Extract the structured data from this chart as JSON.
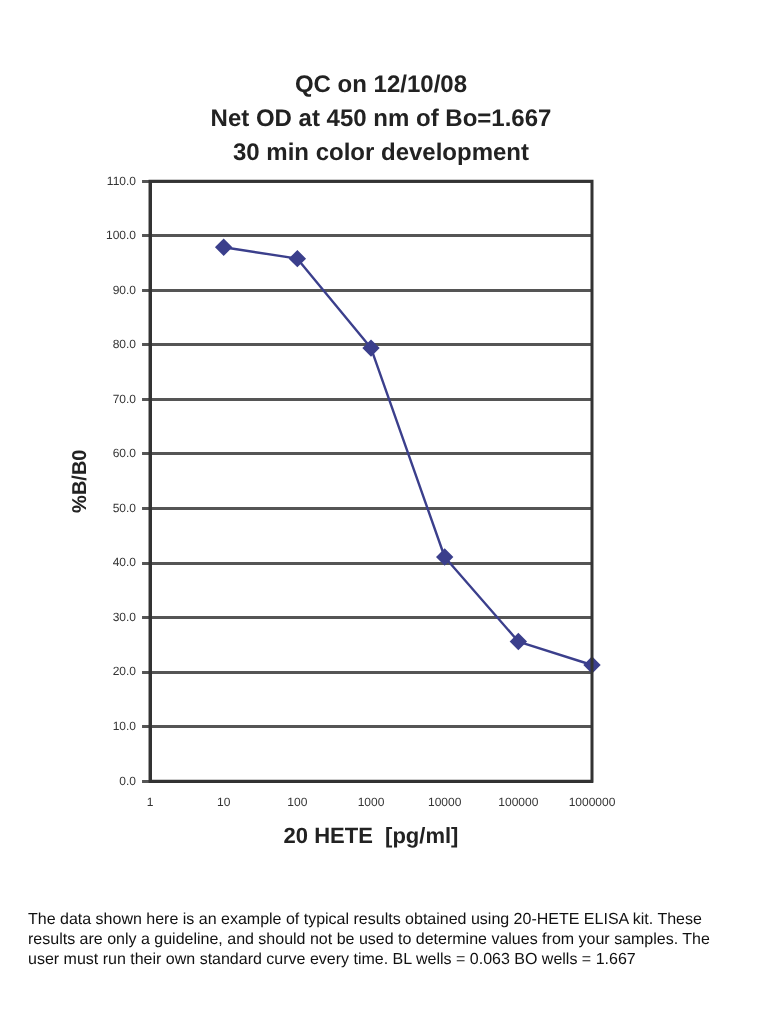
{
  "chart_data": {
    "type": "line",
    "title": "QC on 12/10/08",
    "subtitle": "Net OD at 450 nm of Bo=1.667\n30 min color development",
    "xlabel": "20 HETE  [pg/ml]",
    "ylabel": "%B/B0",
    "x": [
      10,
      100,
      1000,
      10000,
      100000,
      1000000
    ],
    "series": [
      {
        "color": "#3b3f8c",
        "values": [
          97.9,
          95.8,
          79.4,
          41.1,
          25.6,
          21.3
        ]
      }
    ],
    "log": "x",
    "xlim": [
      1,
      1000000
    ],
    "xticks": [
      1,
      10,
      100,
      1000,
      10000,
      100000,
      1000000
    ],
    "ylim": [
      0,
      110
    ],
    "yticks": [
      {
        "value": 0,
        "label": "0.0"
      },
      {
        "value": 10,
        "label": "10.0"
      },
      {
        "value": 20,
        "label": "20.0"
      },
      {
        "value": 30,
        "label": "30.0"
      },
      {
        "value": 40,
        "label": "40.0"
      },
      {
        "value": 50,
        "label": "50.0"
      },
      {
        "value": 60,
        "label": "60.0"
      },
      {
        "value": 70,
        "label": "70.0"
      },
      {
        "value": 80,
        "label": "80.0"
      },
      {
        "value": 90,
        "label": "90.0"
      },
      {
        "value": 100,
        "label": "100.0"
      },
      {
        "value": 110,
        "label": "110.0"
      }
    ],
    "grid": "y",
    "marker": "diamond",
    "line_style": "solid",
    "legend": false,
    "annotations": [
      "The data shown here is an example of typical results obtained using 20-HETE ELISA kit. These results are only a guideline, and should not be used to determine values from your samples. The user must run their own standard curve every time.   BL wells = 0.063 BO wells = 1.667"
    ]
  }
}
